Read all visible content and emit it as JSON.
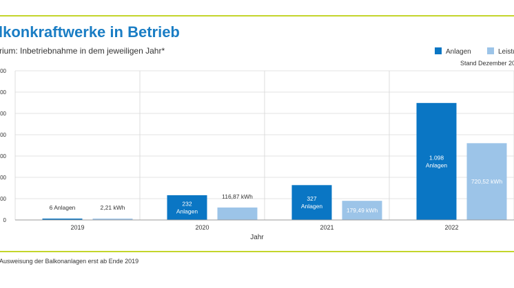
{
  "header": {
    "title": "lkonkraftwerke in Betrieb",
    "subtitle": "rium: Inbetriebnahme in dem jeweiligen Jahr*",
    "stand": "Stand Dezember 20"
  },
  "footnote": "Ausweisung der Balkonanlagen erst ab Ende 2019",
  "colors": {
    "accent_rule": "#c3d52a",
    "title": "#1a7dc4",
    "series_anlagen": "#0a76c4",
    "series_leistung": "#9cc4e8"
  },
  "chart_data": {
    "type": "bar",
    "title": "lkonkraftwerke in Betrieb",
    "subtitle": "rium: Inbetriebnahme in dem jeweiligen Jahr*",
    "xlabel": "Jahr",
    "ylabel": "",
    "categories": [
      "2019",
      "2020",
      "2021",
      "2022"
    ],
    "series": [
      {
        "name": "Anlagen",
        "color": "#0a76c4",
        "values": [
          6,
          232,
          327,
          1098
        ],
        "labels": [
          [
            "6 Anlagen"
          ],
          [
            "232",
            "Anlagen"
          ],
          [
            "327",
            "Anlagen"
          ],
          [
            "1.098",
            "Anlagen"
          ]
        ]
      },
      {
        "name": "Leistu",
        "color": "#9cc4e8",
        "values": [
          2.21,
          116.87,
          179.49,
          720.52
        ],
        "labels": [
          [
            "2,21 kWh"
          ],
          [
            "116,87 kWh"
          ],
          [
            "179,49 kWh"
          ],
          [
            "720,52 kWh"
          ]
        ]
      }
    ],
    "ylim": [
      0,
      1400
    ],
    "yticks": [
      "0",
      "200",
      "400",
      "600",
      "800",
      "1000",
      "1200",
      "1400"
    ],
    "ytick_labels": [
      "0",
      "00",
      "00",
      "00",
      "00",
      "00",
      "00",
      "00"
    ],
    "legend_position": "top-right",
    "grid": "vertical separators between categories"
  }
}
